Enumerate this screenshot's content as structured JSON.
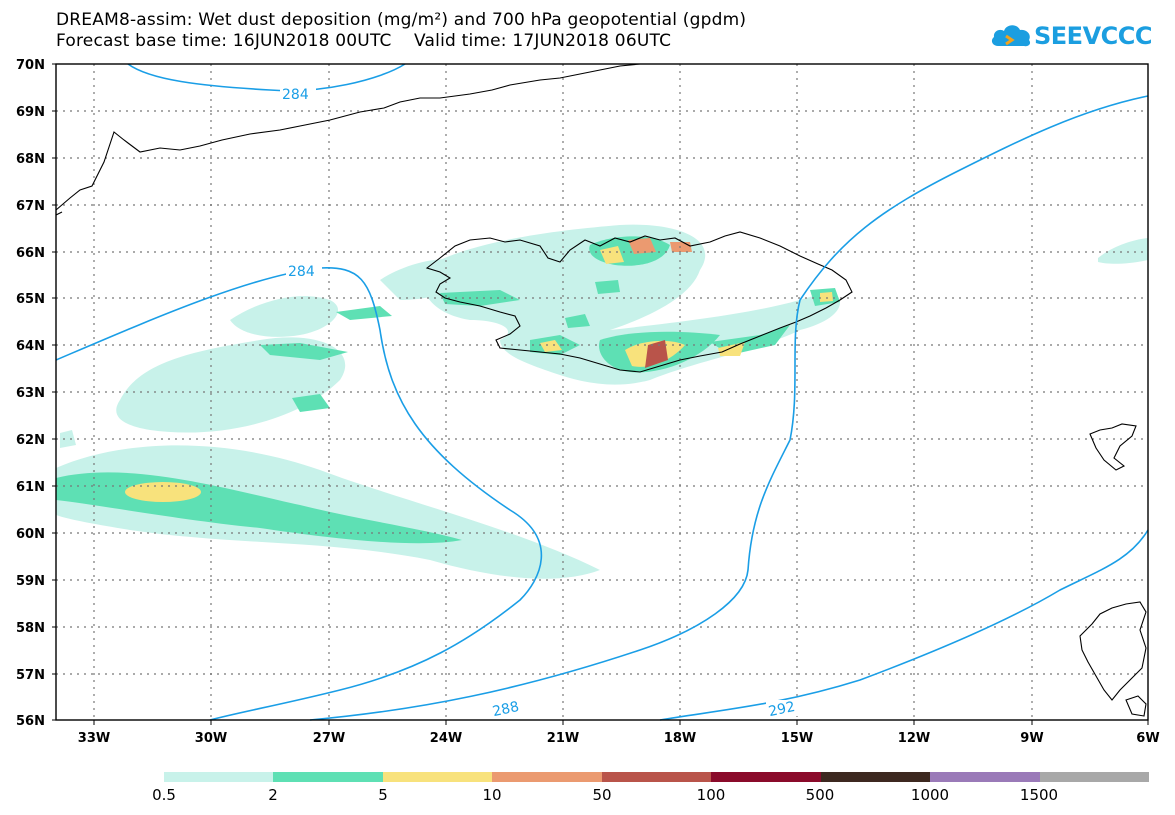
{
  "title_line1": "DREAM8-assim: Wet dust deposition (mg/m²) and 700 hPa geopotential (gpdm)",
  "title_line2": "Forecast base time: 16JUN2018 00UTC    Valid time: 17JUN2018 06UTC",
  "logo": {
    "text": "SEEVCCC",
    "icon": "cloud-icon"
  },
  "lat_labels": [
    "70N",
    "69N",
    "68N",
    "67N",
    "66N",
    "65N",
    "64N",
    "63N",
    "62N",
    "61N",
    "60N",
    "59N",
    "58N",
    "57N",
    "56N"
  ],
  "lon_labels": [
    "33W",
    "30W",
    "27W",
    "24W",
    "21W",
    "18W",
    "15W",
    "12W",
    "9W",
    "6W"
  ],
  "contour_labels": [
    "284",
    "284",
    "288",
    "292"
  ],
  "legend": {
    "labels": [
      "0.5",
      "2",
      "5",
      "10",
      "50",
      "100",
      "500",
      "1000",
      "1500"
    ],
    "colors": [
      "#c8f2ea",
      "#5ee0b4",
      "#f8e27c",
      "#eb9a70",
      "#b9544a",
      "#8a0a2a",
      "#3d2820",
      "#9a7ab8",
      "#a8a8a8"
    ]
  },
  "colors": {
    "contour": "#1a9ee6",
    "coast": "#000000"
  }
}
